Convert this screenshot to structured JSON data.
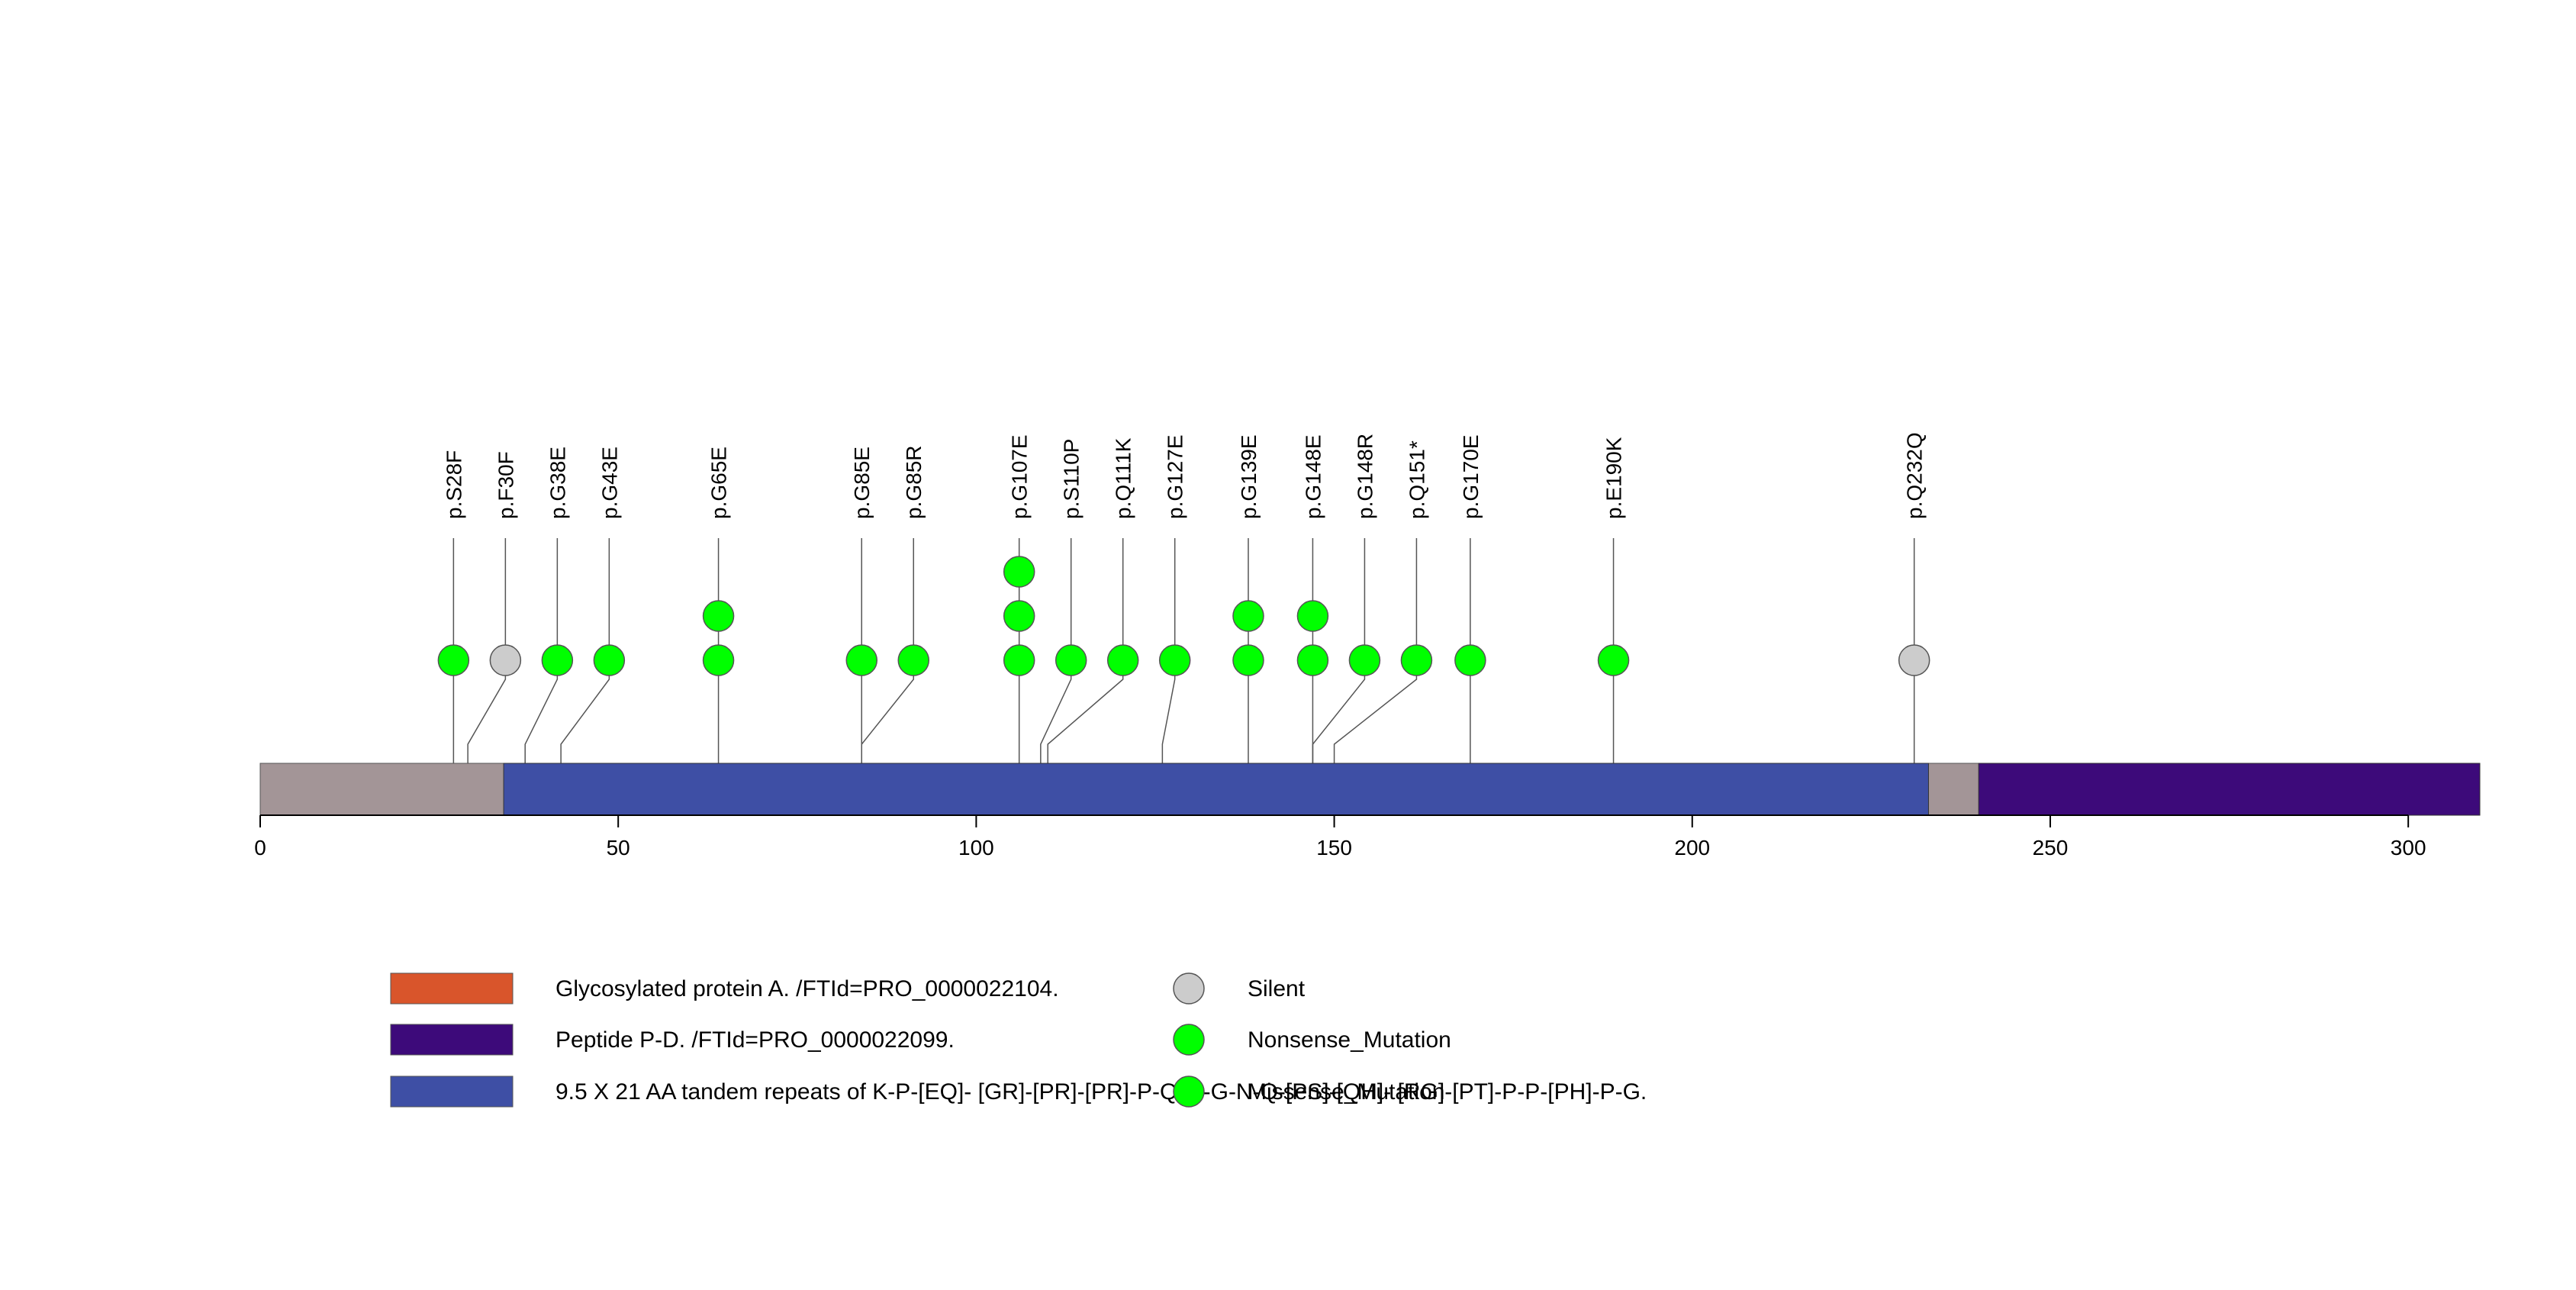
{
  "chart_data": {
    "type": "lollipop",
    "protein_length": 310,
    "x_ticks": [
      0,
      50,
      100,
      150,
      200,
      250,
      300
    ],
    "colors": {
      "backbone": "#a39597",
      "repeats": "#3e4fa5",
      "peptide_pd": "#3d0a7a",
      "glycosylated": "#d9552b",
      "missense": "#00ff00",
      "silent": "#cccccc",
      "nonsense": "#00ff00"
    },
    "domains": [
      {
        "name": "9.5 X 21 AA tandem repeats of K-P-[EQ]- [GR]-[PR]-[PR]-P-Q-G-G-N-Q-[PS]-[QH]- [RG]-[PT]-P-P-[PH]-P-G.",
        "start": 34,
        "end": 233,
        "color_key": "repeats"
      },
      {
        "name": "Peptide P-D. /FTId=PRO_0000022099.",
        "start": 240,
        "end": 310,
        "color_key": "peptide_pd"
      }
    ],
    "mutations": [
      {
        "label": "p.S28F",
        "position": 27,
        "count": 1,
        "type": "missense"
      },
      {
        "label": "p.F30F",
        "position": 29,
        "count": 1,
        "type": "silent"
      },
      {
        "label": "p.G38E",
        "position": 37,
        "count": 1,
        "type": "missense"
      },
      {
        "label": "p.G43E",
        "position": 42,
        "count": 1,
        "type": "missense"
      },
      {
        "label": "p.G65E",
        "position": 64,
        "count": 2,
        "type": "missense"
      },
      {
        "label": "p.G85E",
        "position": 84,
        "count": 1,
        "type": "missense"
      },
      {
        "label": "p.G85R",
        "position": 84,
        "count": 1,
        "type": "missense"
      },
      {
        "label": "p.G107E",
        "position": 106,
        "count": 3,
        "type": "missense"
      },
      {
        "label": "p.S110P",
        "position": 109,
        "count": 1,
        "type": "missense"
      },
      {
        "label": "p.Q111K",
        "position": 110,
        "count": 1,
        "type": "missense"
      },
      {
        "label": "p.G127E",
        "position": 126,
        "count": 1,
        "type": "missense"
      },
      {
        "label": "p.G139E",
        "position": 138,
        "count": 2,
        "type": "missense"
      },
      {
        "label": "p.G148E",
        "position": 147,
        "count": 2,
        "type": "missense"
      },
      {
        "label": "p.G148R",
        "position": 147,
        "count": 1,
        "type": "missense"
      },
      {
        "label": "p.Q151*",
        "position": 150,
        "count": 1,
        "type": "nonsense"
      },
      {
        "label": "p.G170E",
        "position": 169,
        "count": 1,
        "type": "missense"
      },
      {
        "label": "p.E190K",
        "position": 189,
        "count": 1,
        "type": "missense"
      },
      {
        "label": "p.Q232Q",
        "position": 231,
        "count": 1,
        "type": "silent"
      }
    ],
    "legend": [
      {
        "kind": "box",
        "label": "Glycosylated protein A. /FTId=PRO_0000022104.",
        "color_key": "glycosylated"
      },
      {
        "kind": "box",
        "label": "Peptide P-D. /FTId=PRO_0000022099.",
        "color_key": "peptide_pd"
      },
      {
        "kind": "box",
        "label": "9.5 X 21 AA tandem repeats of K-P-[EQ]- [GR]-[PR]-[PR]-P-Q-G-G-N-Q-[PS]-[QH]- [RG]-[PT]-P-P-[PH]-P-G.",
        "color_key": "repeats"
      },
      {
        "kind": "circle",
        "label": "Silent",
        "color_key": "silent"
      },
      {
        "kind": "circle",
        "label": "Nonsense_Mutation",
        "color_key": "nonsense"
      },
      {
        "kind": "circle",
        "label": "Missense_Mutation",
        "color_key": "missense"
      }
    ]
  }
}
